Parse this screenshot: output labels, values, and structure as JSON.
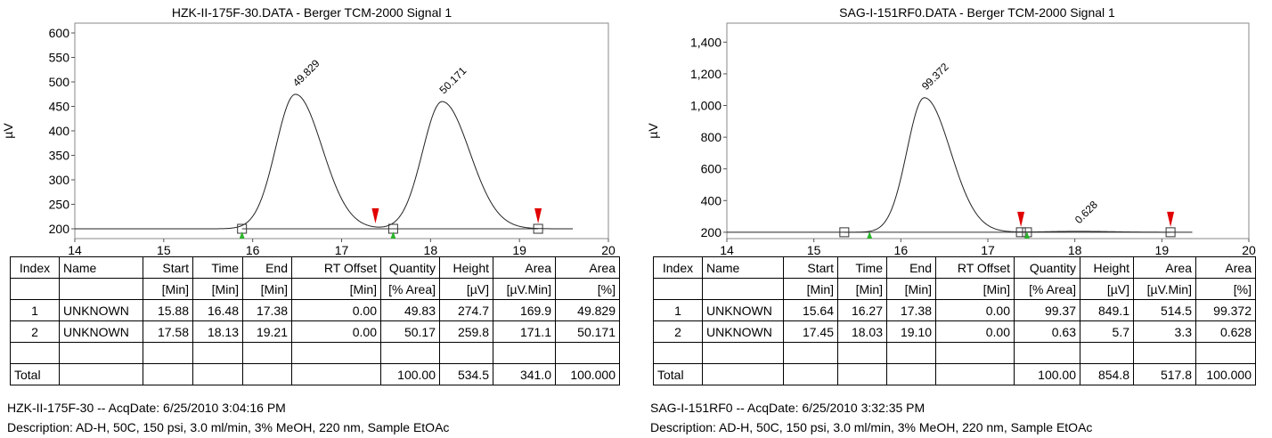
{
  "chart_data": [
    {
      "type": "line",
      "title": "HZK-II-175F-30.DATA - Berger TCM-2000 Signal 1",
      "xlabel": "",
      "ylabel": "µV",
      "xlim": [
        14,
        20
      ],
      "ylim": [
        180,
        620
      ],
      "x_ticks": [
        "14",
        "15",
        "16",
        "17",
        "18",
        "19",
        "20"
      ],
      "y_ticks": [
        "200",
        "250",
        "300",
        "350",
        "400",
        "450",
        "500",
        "550",
        "600"
      ],
      "x_tick_values": [
        14,
        15,
        16,
        17,
        18,
        19,
        20
      ],
      "y_tick_values": [
        200,
        250,
        300,
        350,
        400,
        450,
        500,
        550,
        600
      ],
      "baseline": 200,
      "trace_range": [
        14,
        19.6
      ],
      "peaks": [
        {
          "label": "49.829",
          "rt": 16.48,
          "height": 274.7,
          "start": 15.88,
          "end": 17.38,
          "left_sigma": 0.22,
          "right_sigma": 0.3
        },
        {
          "label": "50.171",
          "rt": 18.13,
          "height": 259.8,
          "start": 17.58,
          "end": 19.21,
          "left_sigma": 0.22,
          "right_sigma": 0.31
        }
      ],
      "baseline_markers": [
        15.88,
        17.58,
        19.21
      ],
      "red_markers": [
        17.38,
        19.21
      ],
      "green_markers": [
        15.88,
        17.58
      ],
      "grid": false,
      "legend": "none"
    },
    {
      "type": "line",
      "title": "SAG-I-151RF0.DATA - Berger TCM-2000 Signal 1",
      "xlabel": "",
      "ylabel": "µV",
      "xlim": [
        14,
        20
      ],
      "ylim": [
        160,
        1520
      ],
      "x_ticks": [
        "14",
        "15",
        "16",
        "17",
        "18",
        "19",
        "20"
      ],
      "y_ticks": [
        "200",
        "400",
        "600",
        "800",
        "1,000",
        "1,200",
        "1,400"
      ],
      "x_tick_values": [
        14,
        15,
        16,
        17,
        18,
        19,
        20
      ],
      "y_tick_values": [
        200,
        400,
        600,
        800,
        1000,
        1200,
        1400
      ],
      "baseline": 200,
      "trace_range": [
        14,
        19.35
      ],
      "peaks": [
        {
          "label": "99.372",
          "rt": 16.27,
          "height": 849.1,
          "start": 15.64,
          "end": 17.38,
          "left_sigma": 0.2,
          "right_sigma": 0.3
        },
        {
          "label": "0.628",
          "rt": 18.03,
          "height": 5.7,
          "start": 17.45,
          "end": 19.1,
          "left_sigma": 0.35,
          "right_sigma": 0.4
        }
      ],
      "baseline_markers": [
        15.35,
        17.38,
        17.45,
        19.1
      ],
      "red_markers": [
        17.38,
        19.1
      ],
      "green_markers": [
        15.64,
        17.45
      ],
      "grid": false,
      "legend": "none"
    }
  ],
  "panels": [
    {
      "table": {
        "headers": [
          "Index",
          "Name",
          "Start",
          "Time",
          "End",
          "RT Offset",
          "Quantity",
          "Height",
          "Area",
          "Area"
        ],
        "units": [
          "",
          "",
          "[Min]",
          "[Min]",
          "[Min]",
          "[Min]",
          "[% Area]",
          "[µV]",
          "[µV.Min]",
          "[%]"
        ],
        "rows": [
          [
            "1",
            "UNKNOWN",
            "15.88",
            "16.48",
            "17.38",
            "0.00",
            "49.83",
            "274.7",
            "169.9",
            "49.829"
          ],
          [
            "2",
            "UNKNOWN",
            "17.58",
            "18.13",
            "19.21",
            "0.00",
            "50.17",
            "259.8",
            "171.1",
            "50.171"
          ],
          [
            "",
            "",
            "",
            "",
            "",
            "",
            "",
            "",
            "",
            ""
          ],
          [
            "Total",
            "",
            "",
            "",
            "",
            "",
            "100.00",
            "534.5",
            "341.0",
            "100.000"
          ]
        ]
      },
      "acq_line": "HZK-II-175F-30 -- AcqDate: 6/25/2010 3:04:16 PM",
      "description": "Description: AD-H, 50C, 150 psi, 3.0 ml/min, 3% MeOH, 220 nm, Sample EtOAc"
    },
    {
      "table": {
        "headers": [
          "Index",
          "Name",
          "Start",
          "Time",
          "End",
          "RT Offset",
          "Quantity",
          "Height",
          "Area",
          "Area"
        ],
        "units": [
          "",
          "",
          "[Min]",
          "[Min]",
          "[Min]",
          "[Min]",
          "[% Area]",
          "[µV]",
          "[µV.Min]",
          "[%]"
        ],
        "rows": [
          [
            "1",
            "UNKNOWN",
            "15.64",
            "16.27",
            "17.38",
            "0.00",
            "99.37",
            "849.1",
            "514.5",
            "99.372"
          ],
          [
            "2",
            "UNKNOWN",
            "17.45",
            "18.03",
            "19.10",
            "0.00",
            "0.63",
            "5.7",
            "3.3",
            "0.628"
          ],
          [
            "",
            "",
            "",
            "",
            "",
            "",
            "",
            "",
            "",
            ""
          ],
          [
            "Total",
            "",
            "",
            "",
            "",
            "",
            "100.00",
            "854.8",
            "517.8",
            "100.000"
          ]
        ]
      },
      "acq_line": "SAG-I-151RF0 -- AcqDate: 6/25/2010 3:32:35 PM",
      "description": "Description: AD-H, 50C, 150 psi, 3.0 ml/min, 3% MeOH, 220 nm, Sample EtOAc"
    }
  ]
}
